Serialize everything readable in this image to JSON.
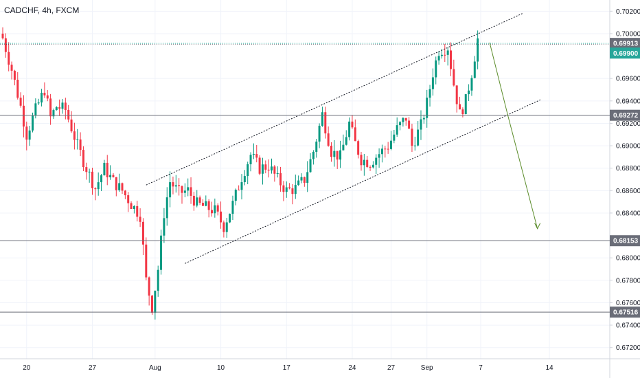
{
  "header": {
    "symbol_label": "CADCHF, 4h, FXCM"
  },
  "chart_data": {
    "type": "candlestick",
    "title": "CADCHF, 4h, FXCM",
    "ylim": [
      0.671,
      0.703
    ],
    "y_ticks": [
      "0.70200",
      "0.70000",
      "0.69600",
      "0.69400",
      "0.69200",
      "0.69000",
      "0.68800",
      "0.68600",
      "0.68400",
      "0.68000",
      "0.67800",
      "0.67600",
      "0.67400",
      "0.67200"
    ],
    "x_ticks": [
      {
        "label": "20",
        "index": 8
      },
      {
        "label": "27",
        "index": 30
      },
      {
        "label": "Aug",
        "index": 51
      },
      {
        "label": "10",
        "index": 73
      },
      {
        "label": "17",
        "index": 95
      },
      {
        "label": "24",
        "index": 117
      },
      {
        "label": "27",
        "index": 130
      },
      {
        "label": "Sep",
        "index": 142
      },
      {
        "label": "7",
        "index": 160
      },
      {
        "label": "14",
        "index": 183
      }
    ],
    "candles_anchor_closes": [
      [
        0,
        0.6996
      ],
      [
        3,
        0.6968
      ],
      [
        6,
        0.6935
      ],
      [
        8,
        0.691
      ],
      [
        11,
        0.6932
      ],
      [
        14,
        0.695
      ],
      [
        16,
        0.6925
      ],
      [
        18,
        0.6935
      ],
      [
        21,
        0.6932
      ],
      [
        25,
        0.69
      ],
      [
        28,
        0.688
      ],
      [
        31,
        0.6862
      ],
      [
        34,
        0.688
      ],
      [
        37,
        0.6868
      ],
      [
        40,
        0.686
      ],
      [
        43,
        0.6848
      ],
      [
        46,
        0.6838
      ],
      [
        48,
        0.678
      ],
      [
        50,
        0.6756
      ],
      [
        52,
        0.679
      ],
      [
        54,
        0.684
      ],
      [
        56,
        0.6868
      ],
      [
        59,
        0.6858
      ],
      [
        62,
        0.686
      ],
      [
        65,
        0.6848
      ],
      [
        68,
        0.6845
      ],
      [
        71,
        0.6842
      ],
      [
        74,
        0.6828
      ],
      [
        77,
        0.6848
      ],
      [
        80,
        0.6872
      ],
      [
        83,
        0.6892
      ],
      [
        86,
        0.688
      ],
      [
        89,
        0.6882
      ],
      [
        92,
        0.687
      ],
      [
        95,
        0.686
      ],
      [
        98,
        0.6862
      ],
      [
        101,
        0.687
      ],
      [
        104,
        0.6895
      ],
      [
        107,
        0.6928
      ],
      [
        110,
        0.6895
      ],
      [
        113,
        0.689
      ],
      [
        116,
        0.692
      ],
      [
        118,
        0.6902
      ],
      [
        120,
        0.6888
      ],
      [
        123,
        0.6885
      ],
      [
        126,
        0.6893
      ],
      [
        129,
        0.69
      ],
      [
        132,
        0.6915
      ],
      [
        135,
        0.6925
      ],
      [
        137,
        0.69
      ],
      [
        140,
        0.6918
      ],
      [
        142,
        0.6938
      ],
      [
        144,
        0.6965
      ],
      [
        146,
        0.6985
      ],
      [
        149,
        0.6988
      ],
      [
        151,
        0.6955
      ],
      [
        153,
        0.6928
      ],
      [
        155,
        0.694
      ],
      [
        157,
        0.6965
      ],
      [
        159,
        0.6995
      ]
    ],
    "horizontal_levels": [
      {
        "value": 0.69913,
        "label": "0.69913",
        "color": "#6a6d78",
        "style": "dotted-green"
      },
      {
        "value": 0.69272,
        "label": "0.69272",
        "color": "#6a6d78",
        "style": "solid"
      },
      {
        "value": 0.68153,
        "label": "0.68153",
        "color": "#6a6d78",
        "style": "solid"
      },
      {
        "value": 0.67516,
        "label": "0.67516",
        "color": "#6a6d78",
        "style": "solid"
      }
    ],
    "current_price": {
      "value": 0.699,
      "label": "0.69900",
      "color": "#26a69a"
    },
    "channel_upper": [
      [
        48,
        0.6865
      ],
      [
        174,
        0.7018
      ]
    ],
    "channel_lower": [
      [
        61,
        0.6795
      ],
      [
        180,
        0.6941
      ]
    ],
    "projection_arrow": [
      [
        163,
        0.6992
      ],
      [
        169,
        0.6928
      ],
      [
        179,
        0.6826
      ]
    ],
    "colors": {
      "up": "#089981",
      "down": "#f23645",
      "grid": "#f0f3fa",
      "axis": "#d1d4dc",
      "text": "#131722",
      "arrow": "#5b8c2a"
    }
  }
}
